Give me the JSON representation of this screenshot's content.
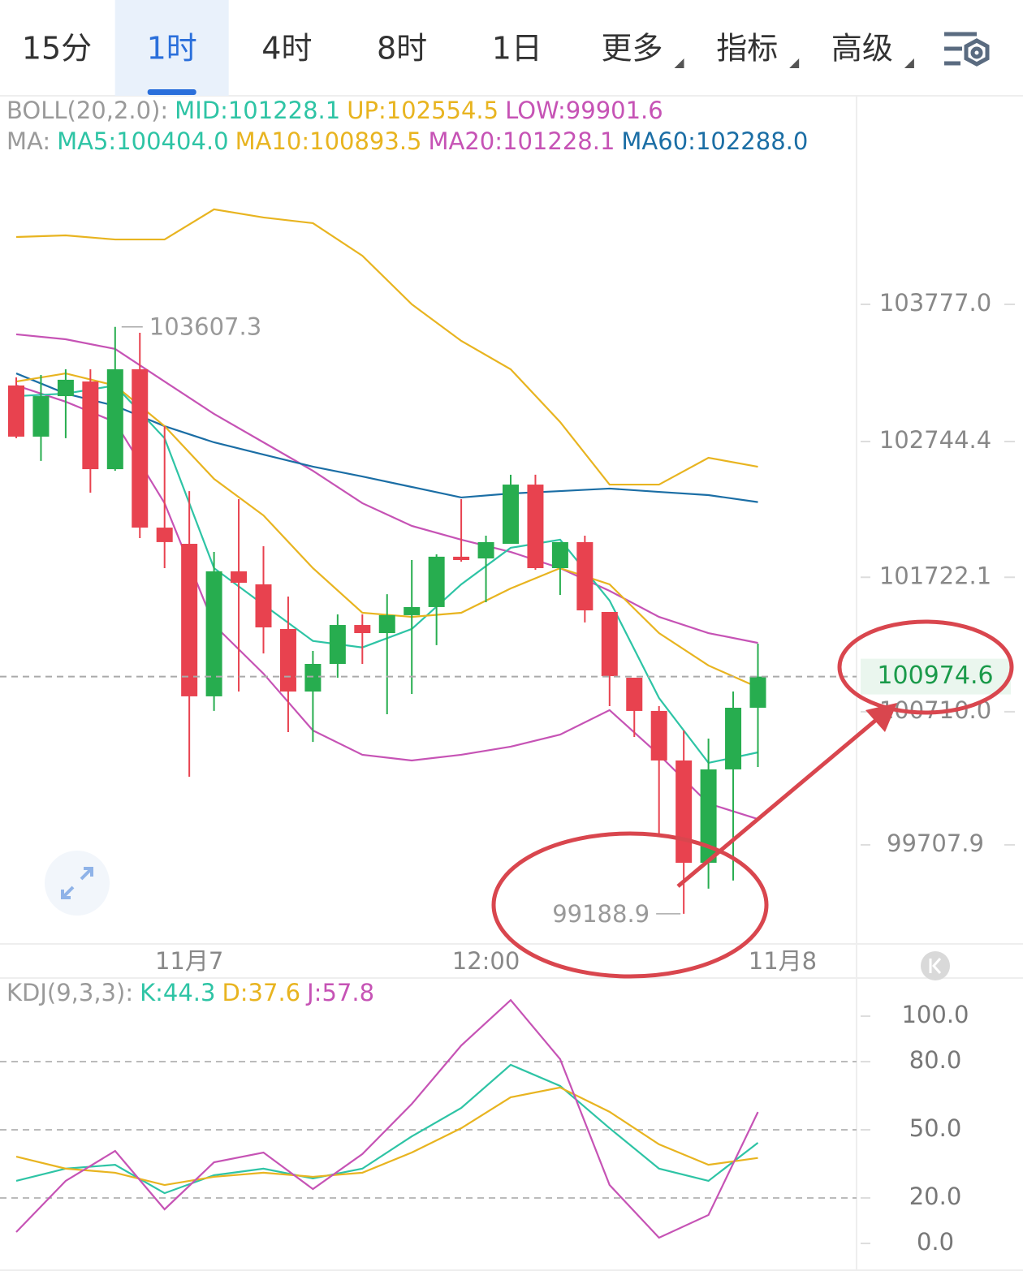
{
  "tabs": [
    {
      "label": "15分"
    },
    {
      "label": "1时"
    },
    {
      "label": "4时"
    },
    {
      "label": "8时"
    },
    {
      "label": "1日"
    },
    {
      "label": "更多",
      "menu": true
    },
    {
      "label": "指标",
      "menu": true
    },
    {
      "label": "高级",
      "menu": true
    }
  ],
  "active_tab": 1,
  "chart_data": [
    {
      "type": "candlestick",
      "legend_rows": [
        [
          {
            "text": "BOLL(20,2.0):",
            "color": "#9a9a9a"
          },
          {
            "text": "MID:101228.1",
            "color": "#2ec4a5"
          },
          {
            "text": "UP:102554.5",
            "color": "#e8b420"
          },
          {
            "text": "LOW:99901.6",
            "color": "#c653b5"
          }
        ],
        [
          {
            "text": "MA:",
            "color": "#9a9a9a"
          },
          {
            "text": "MA5:100404.0",
            "color": "#2ec4a5"
          },
          {
            "text": "MA10:100893.5",
            "color": "#e8b420"
          },
          {
            "text": "MA20:101228.1",
            "color": "#c653b5"
          },
          {
            "text": "MA60:102288.0",
            "color": "#1b6ea5"
          }
        ]
      ],
      "ylim": [
        98962,
        105347
      ],
      "yticks": [
        {
          "value": 103777,
          "label": "103777.0"
        },
        {
          "value": 102744.4,
          "label": "102744.4"
        },
        {
          "value": 101722.1,
          "label": "101722.1"
        },
        {
          "value": 100710,
          "label": "100710.0"
        },
        {
          "value": 99707.9,
          "label": "99707.9"
        }
      ],
      "x_labels": [
        {
          "index": 7,
          "label": "11月7"
        },
        {
          "index": 19,
          "label": "12:00"
        },
        {
          "index": 31,
          "label": "11月8"
        }
      ],
      "up_color": "#27ad4f",
      "down_color": "#e8424f",
      "candles": {
        "open": [
          103166,
          102781,
          103086,
          103196,
          102536,
          103288,
          102096,
          101974,
          100826,
          101767,
          101669,
          101333,
          100862,
          101070,
          101363,
          101302,
          101437,
          101498,
          101877,
          101864,
          101974,
          102420,
          101791,
          101987,
          101461,
          100966,
          100716,
          100343,
          99573,
          100276,
          100740
        ],
        "high": [
          103227,
          103245,
          103288,
          103288,
          103607.3,
          103563,
          102860,
          102371,
          101913,
          102310,
          101956,
          101577,
          101168,
          101443,
          101443,
          101595,
          101852,
          101895,
          102310,
          102035,
          102494,
          102494,
          101987,
          102035,
          101461,
          100966,
          100752,
          100569,
          100508,
          100862,
          101223
        ],
        "low": [
          102769,
          102598,
          102769,
          102359,
          102524,
          102017,
          101791,
          100221,
          100716,
          100862,
          101149,
          100557,
          100483,
          100966,
          101070,
          100691,
          100844,
          101211,
          101840,
          101534,
          101974,
          101779,
          101589,
          101382,
          100752,
          100520,
          99775,
          99188.9,
          99378,
          99439,
          100294
        ],
        "close": [
          102781,
          103086,
          103209,
          102536,
          103288,
          102096,
          101987,
          100826,
          101767,
          101681,
          101345,
          100862,
          101070,
          101363,
          101302,
          101437,
          101498,
          101877,
          101852,
          101987,
          102420,
          101791,
          101987,
          101473,
          100978,
          100716,
          100343,
          99573,
          100276,
          100740,
          100974.6
        ]
      },
      "line_x": [
        0,
        2,
        4,
        6,
        8,
        10,
        12,
        14,
        16,
        18,
        20,
        22,
        24,
        26,
        28,
        30
      ],
      "series": [
        {
          "color": "#e8b420",
          "values": [
            104284,
            104296,
            104265,
            104265,
            104492,
            104431,
            104388,
            104143,
            103777,
            103502,
            103288,
            102891,
            102420,
            102420,
            102622,
            102554.5
          ]
        },
        {
          "color": "#c653b5",
          "values": [
            103551,
            103514,
            103441,
            103196,
            102952,
            102738,
            102524,
            102280,
            102109,
            102005,
            101913,
            101791,
            101620,
            101424,
            101302,
            101228.1
          ]
        },
        {
          "color": "#c653b5",
          "values": [
            103166,
            103044,
            102891,
            102280,
            101363,
            100997,
            100569,
            100386,
            100343,
            100386,
            100447,
            100538,
            100722,
            100386,
            100019,
            99901.6
          ]
        },
        {
          "color": "#1b6ea5",
          "values": [
            103257,
            103105,
            103013,
            102860,
            102738,
            102646,
            102555,
            102481,
            102402,
            102323,
            102353,
            102371,
            102390,
            102365,
            102341,
            102288.0
          ]
        },
        {
          "color": "#2ec4a5",
          "values": [
            103086,
            103105,
            103166,
            102769,
            101791,
            101516,
            101243,
            101194,
            101333,
            101669,
            101944,
            102005,
            101547,
            100813,
            100325,
            100404.0
          ]
        },
        {
          "color": "#e8b420",
          "values": [
            103196,
            103257,
            103166,
            102860,
            102463,
            102188,
            101791,
            101455,
            101424,
            101455,
            101638,
            101791,
            101669,
            101302,
            101058,
            100893.5
          ]
        }
      ],
      "current_price": {
        "value": 100974.6,
        "label": "100974.6"
      },
      "annotations": [
        {
          "index": 4,
          "value": 103607.3,
          "label": "103607.3"
        },
        {
          "index": 27,
          "value": 99188.9,
          "label": "99188.9"
        }
      ]
    },
    {
      "type": "line",
      "legend_rows": [
        [
          {
            "text": "KDJ(9,3,3):",
            "color": "#9a9a9a"
          },
          {
            "text": "K:44.3",
            "color": "#2ec4a5"
          },
          {
            "text": "D:37.6",
            "color": "#e8b420"
          },
          {
            "text": "J:57.8",
            "color": "#c653b5"
          }
        ]
      ],
      "ylim": [
        -11.8,
        116.8
      ],
      "yticks": [
        {
          "value": 100,
          "label": "100.0"
        },
        {
          "value": 80,
          "label": "80.0"
        },
        {
          "value": 50,
          "label": "50.0"
        },
        {
          "value": 20,
          "label": "20.0"
        },
        {
          "value": 0,
          "label": "0.0"
        }
      ],
      "line_x": [
        0,
        2,
        4,
        6,
        8,
        10,
        12,
        14,
        16,
        18,
        20,
        22,
        24,
        26,
        28,
        30
      ],
      "series": [
        {
          "color": "#2ec4a5",
          "values": [
            27.5,
            32.9,
            34.6,
            22.1,
            30,
            32.9,
            28.6,
            32.9,
            47.1,
            59.6,
            78.6,
            69.3,
            50.7,
            32.9,
            27.5,
            44.3
          ]
        },
        {
          "color": "#e8b420",
          "values": [
            38.2,
            32.9,
            31.1,
            25.7,
            29.3,
            31.1,
            29.3,
            31.1,
            40,
            50.7,
            64.3,
            68.6,
            57.9,
            43.6,
            34.6,
            37.6
          ]
        },
        {
          "color": "#c653b5",
          "values": [
            5,
            27.5,
            40.7,
            15,
            35.7,
            40,
            23.9,
            39.3,
            61.4,
            87.1,
            107.1,
            81.1,
            25.7,
            2.5,
            12.5,
            57.8
          ]
        }
      ]
    }
  ]
}
